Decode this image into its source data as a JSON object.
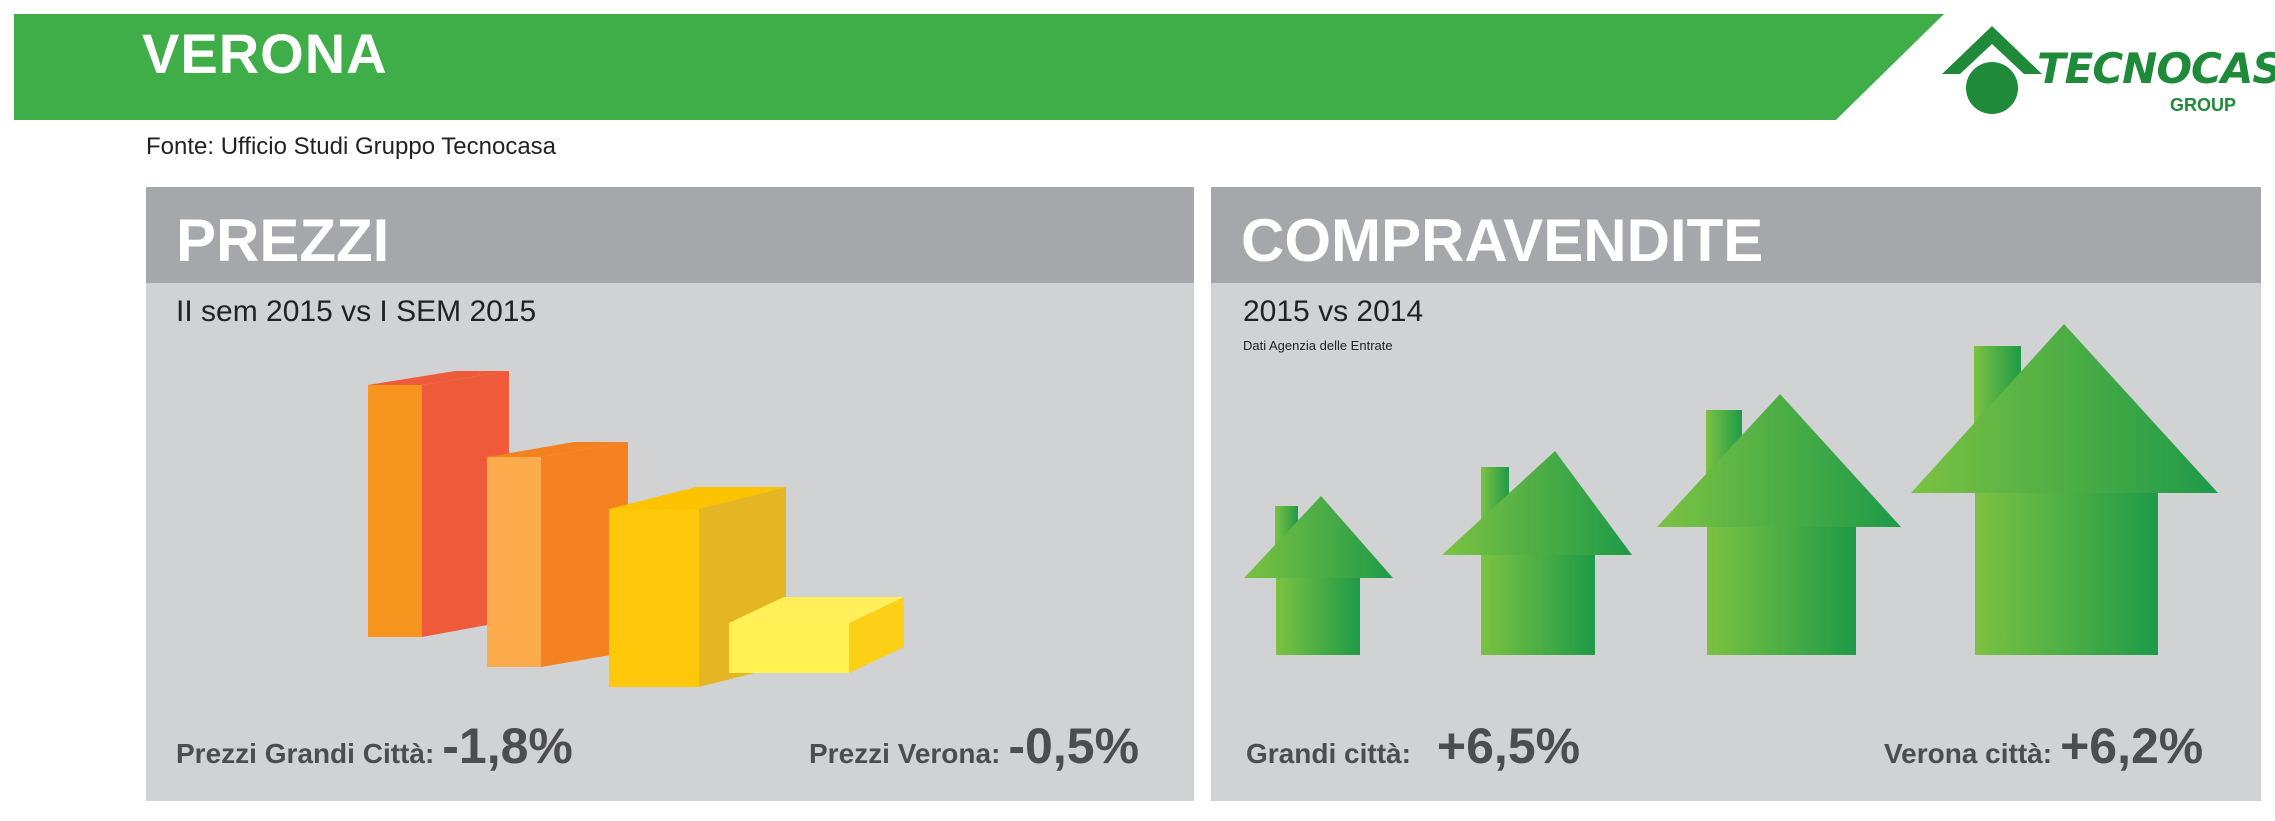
{
  "header": {
    "title": "VERONA",
    "source": "Fonte: Ufficio Studi Gruppo Tecnocasa"
  },
  "logo": {
    "brand": "TECNOCASA",
    "group": "GROUP"
  },
  "prezzi": {
    "title": "PREZZI",
    "subtitle": "II sem 2015 vs I SEM 2015",
    "stat1_label": "Prezzi Grandi Città:",
    "stat1_value": "-1,8%",
    "stat2_label": "Prezzi Verona:",
    "stat2_value": "-0,5%"
  },
  "compravendite": {
    "title": "COMPRAVENDITE",
    "subtitle": "2015 vs 2014",
    "note": "Dati Agenzia delle Entrate",
    "stat1_label": "Grandi città:",
    "stat1_value": "+6,5%",
    "stat2_label": "Verona città:",
    "stat2_value": "+6,2%"
  },
  "colors": {
    "banner_green": "#3fae49",
    "panel_bg": "#d1d2d4",
    "panel_head": "#a6a7aa",
    "text_dark": "#4d4d4f"
  }
}
